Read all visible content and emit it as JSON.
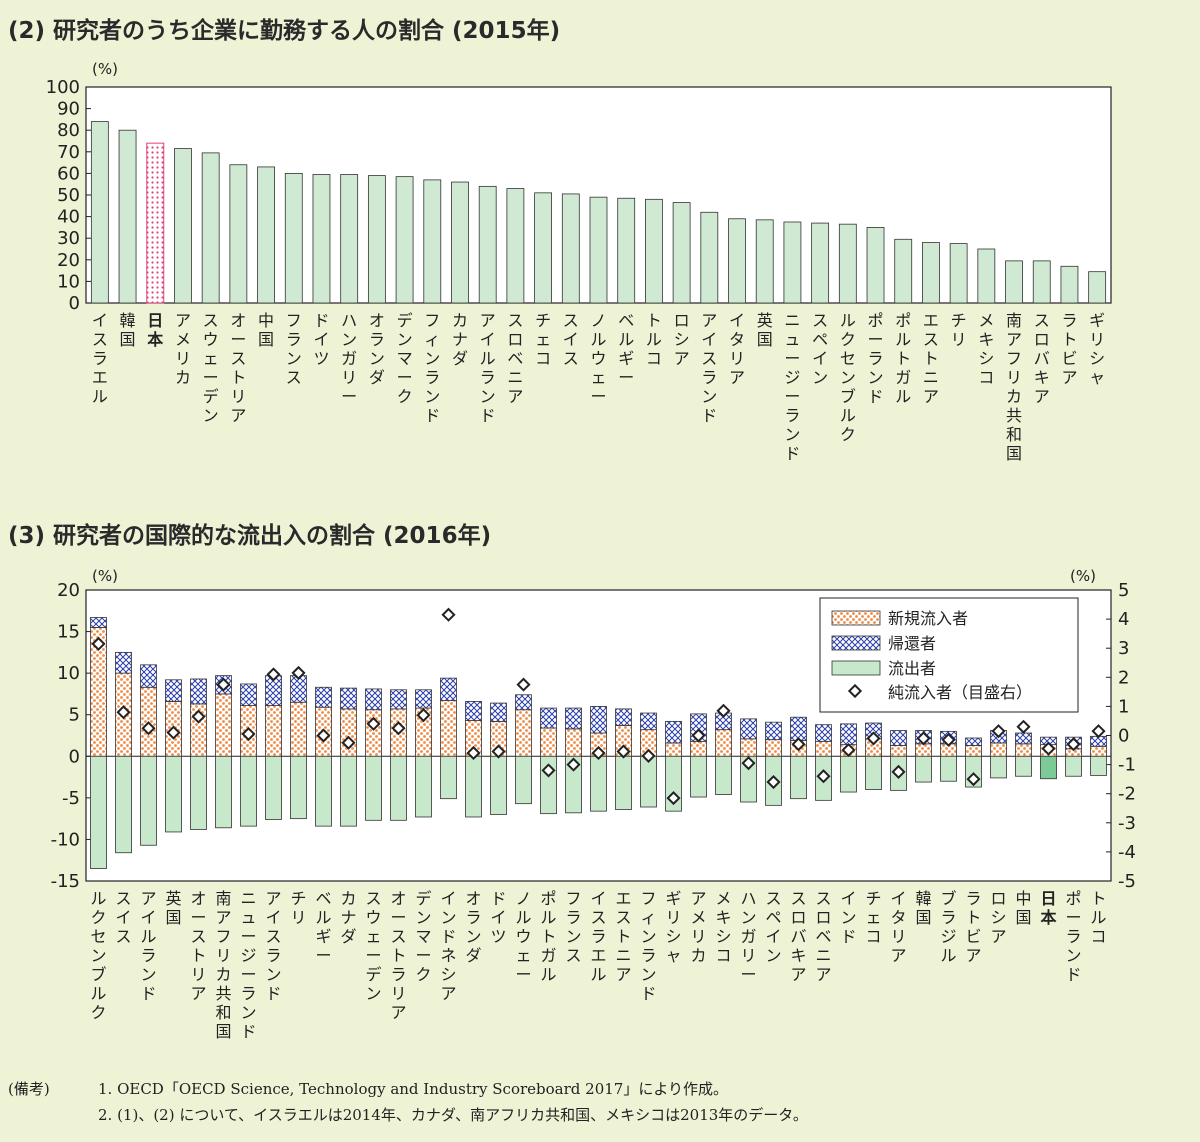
{
  "chart_data": [
    {
      "type": "bar",
      "title": "(2) 研究者のうち企業に勤務する人の割合 (2015年)",
      "unit": "(%)",
      "ylim": [
        0,
        100
      ],
      "yticks": [
        0,
        10,
        20,
        30,
        40,
        50,
        60,
        70,
        80,
        90,
        100
      ],
      "categories": [
        "イスラエル",
        "韓国",
        "日本",
        "アメリカ",
        "スウェーデン",
        "オーストリア",
        "中国",
        "フランス",
        "ドイツ",
        "ハンガリー",
        "オランダ",
        "デンマーク",
        "フィンランド",
        "カナダ",
        "アイルランド",
        "スロベニア",
        "チェコ",
        "スイス",
        "ノルウェー",
        "ベルギー",
        "トルコ",
        "ロシア",
        "アイスランド",
        "イタリア",
        "英国",
        "ニュージーランド",
        "スペイン",
        "ルクセンブルク",
        "ポーランド",
        "ポルトガル",
        "エストニア",
        "チリ",
        "メキシコ",
        "南アフリカ共和国",
        "スロバキア",
        "ラトビア",
        "ギリシャ"
      ],
      "values": [
        84,
        80,
        74,
        71.5,
        69.5,
        64,
        63,
        60,
        59.5,
        59.5,
        59,
        58.5,
        57,
        56,
        54,
        53,
        51,
        50.5,
        49,
        48.5,
        48,
        46.5,
        42,
        39,
        38.5,
        37.5,
        37,
        36.5,
        35,
        29.5,
        28,
        27.5,
        25,
        19.5,
        19.5,
        17,
        14.5
      ],
      "highlight": "日本",
      "colors": {
        "bar": "#cfe9d3",
        "highlight": "#f7b8c8",
        "edge": "#333333"
      }
    },
    {
      "type": "bar",
      "subtype": "stacked-bar-with-markers",
      "title": "(3) 研究者の国際的な流出入の割合 (2016年)",
      "unit_left": "(%)",
      "unit_right": "(%)",
      "ylim_left": [
        -15,
        20
      ],
      "ylim_right": [
        -5,
        5
      ],
      "yticks_left": [
        20,
        15,
        10,
        5,
        0,
        -5,
        -10,
        -15
      ],
      "yticks_right": [
        5,
        4,
        3,
        2,
        1,
        0,
        -1,
        -2,
        -3,
        -4,
        -5
      ],
      "categories": [
        "ルクセンブルク",
        "スイス",
        "アイルランド",
        "英国",
        "オーストリア",
        "南アフリカ共和国",
        "ニュージーランド",
        "アイスランド",
        "チリ",
        "ベルギー",
        "カナダ",
        "スウェーデン",
        "オーストラリア",
        "デンマーク",
        "インドネシア",
        "オランダ",
        "ドイツ",
        "ノルウェー",
        "ポルトガル",
        "フランス",
        "イスラエル",
        "エストニア",
        "フィンランド",
        "ギリシャ",
        "アメリカ",
        "メキシコ",
        "ハンガリー",
        "スペイン",
        "スロバキア",
        "スロベニア",
        "インド",
        "チェコ",
        "イタリア",
        "韓国",
        "ブラジル",
        "ラトビア",
        "ロシア",
        "中国",
        "日本",
        "ポーランド",
        "トルコ"
      ],
      "highlight": "日本",
      "legend_position": "top-right",
      "series": [
        {
          "name": "新規流入者",
          "axis": "left",
          "values": [
            15.5,
            10,
            8.3,
            6.6,
            6.3,
            7.5,
            6.1,
            6.1,
            6.5,
            5.9,
            5.7,
            5.6,
            5.7,
            5.8,
            6.7,
            4.3,
            4.2,
            5.6,
            3.4,
            3.3,
            2.8,
            3.7,
            3.2,
            1.6,
            1.8,
            3.2,
            2.1,
            2.0,
            1.9,
            1.8,
            1.4,
            2.1,
            1.3,
            1.5,
            1.5,
            1.3,
            1.6,
            1.5,
            1.4,
            0.9,
            1.2
          ]
        },
        {
          "name": "帰還者",
          "axis": "left",
          "values": [
            1.2,
            2.5,
            2.7,
            2.6,
            3.0,
            2.2,
            2.6,
            3.6,
            3.2,
            2.4,
            2.5,
            2.5,
            2.3,
            2.2,
            2.7,
            2.3,
            2.2,
            1.8,
            2.4,
            2.5,
            3.2,
            2.0,
            2.0,
            2.6,
            3.3,
            2.0,
            2.4,
            2.1,
            2.8,
            2.0,
            2.5,
            1.9,
            1.8,
            1.6,
            1.5,
            0.9,
            1.5,
            1.3,
            0.9,
            1.4,
            1.2
          ]
        },
        {
          "name": "流出者",
          "axis": "left",
          "values": [
            -13.5,
            -11.6,
            -10.7,
            -9.1,
            -8.8,
            -8.6,
            -8.4,
            -7.6,
            -7.5,
            -8.4,
            -8.4,
            -7.7,
            -7.7,
            -7.3,
            -5.1,
            -7.3,
            -7.0,
            -5.7,
            -6.9,
            -6.8,
            -6.6,
            -6.4,
            -6.1,
            -6.6,
            -4.9,
            -4.6,
            -5.5,
            -5.9,
            -5.1,
            -5.3,
            -4.3,
            -4.0,
            -4.1,
            -3.1,
            -3.0,
            -3.7,
            -2.6,
            -2.4,
            -2.7,
            -2.4,
            -2.3
          ]
        },
        {
          "name": "純流入者（目盛右）",
          "axis": "right",
          "marker": "diamond",
          "values": [
            3.15,
            0.8,
            0.25,
            0.1,
            0.65,
            1.75,
            0.05,
            2.1,
            2.15,
            0,
            -0.25,
            0.4,
            0.25,
            0.7,
            4.15,
            -0.6,
            -0.55,
            1.75,
            -1.2,
            -1.0,
            -0.6,
            -0.55,
            -0.7,
            -2.15,
            0,
            0.85,
            -0.95,
            -1.6,
            -0.3,
            -1.4,
            -0.5,
            -0.1,
            -1.25,
            -0.1,
            -0.15,
            -1.5,
            0.15,
            0.3,
            -0.45,
            -0.3,
            0.15
          ]
        }
      ],
      "colors": {
        "inflow": "#f2a46b",
        "return": "#2a3fa8",
        "outflow": "#c8e8cc",
        "outflow_highlight": "#7ccb96",
        "edge": "#333333"
      }
    }
  ],
  "notes": {
    "label": "(備考)",
    "line1": "1. OECD「OECD Science, Technology and Industry Scoreboard 2017」により作成。",
    "line2": "2. (1)、(2) について、イスラエルは2014年、カナダ、南アフリカ共和国、メキシコは2013年のデータ。"
  }
}
